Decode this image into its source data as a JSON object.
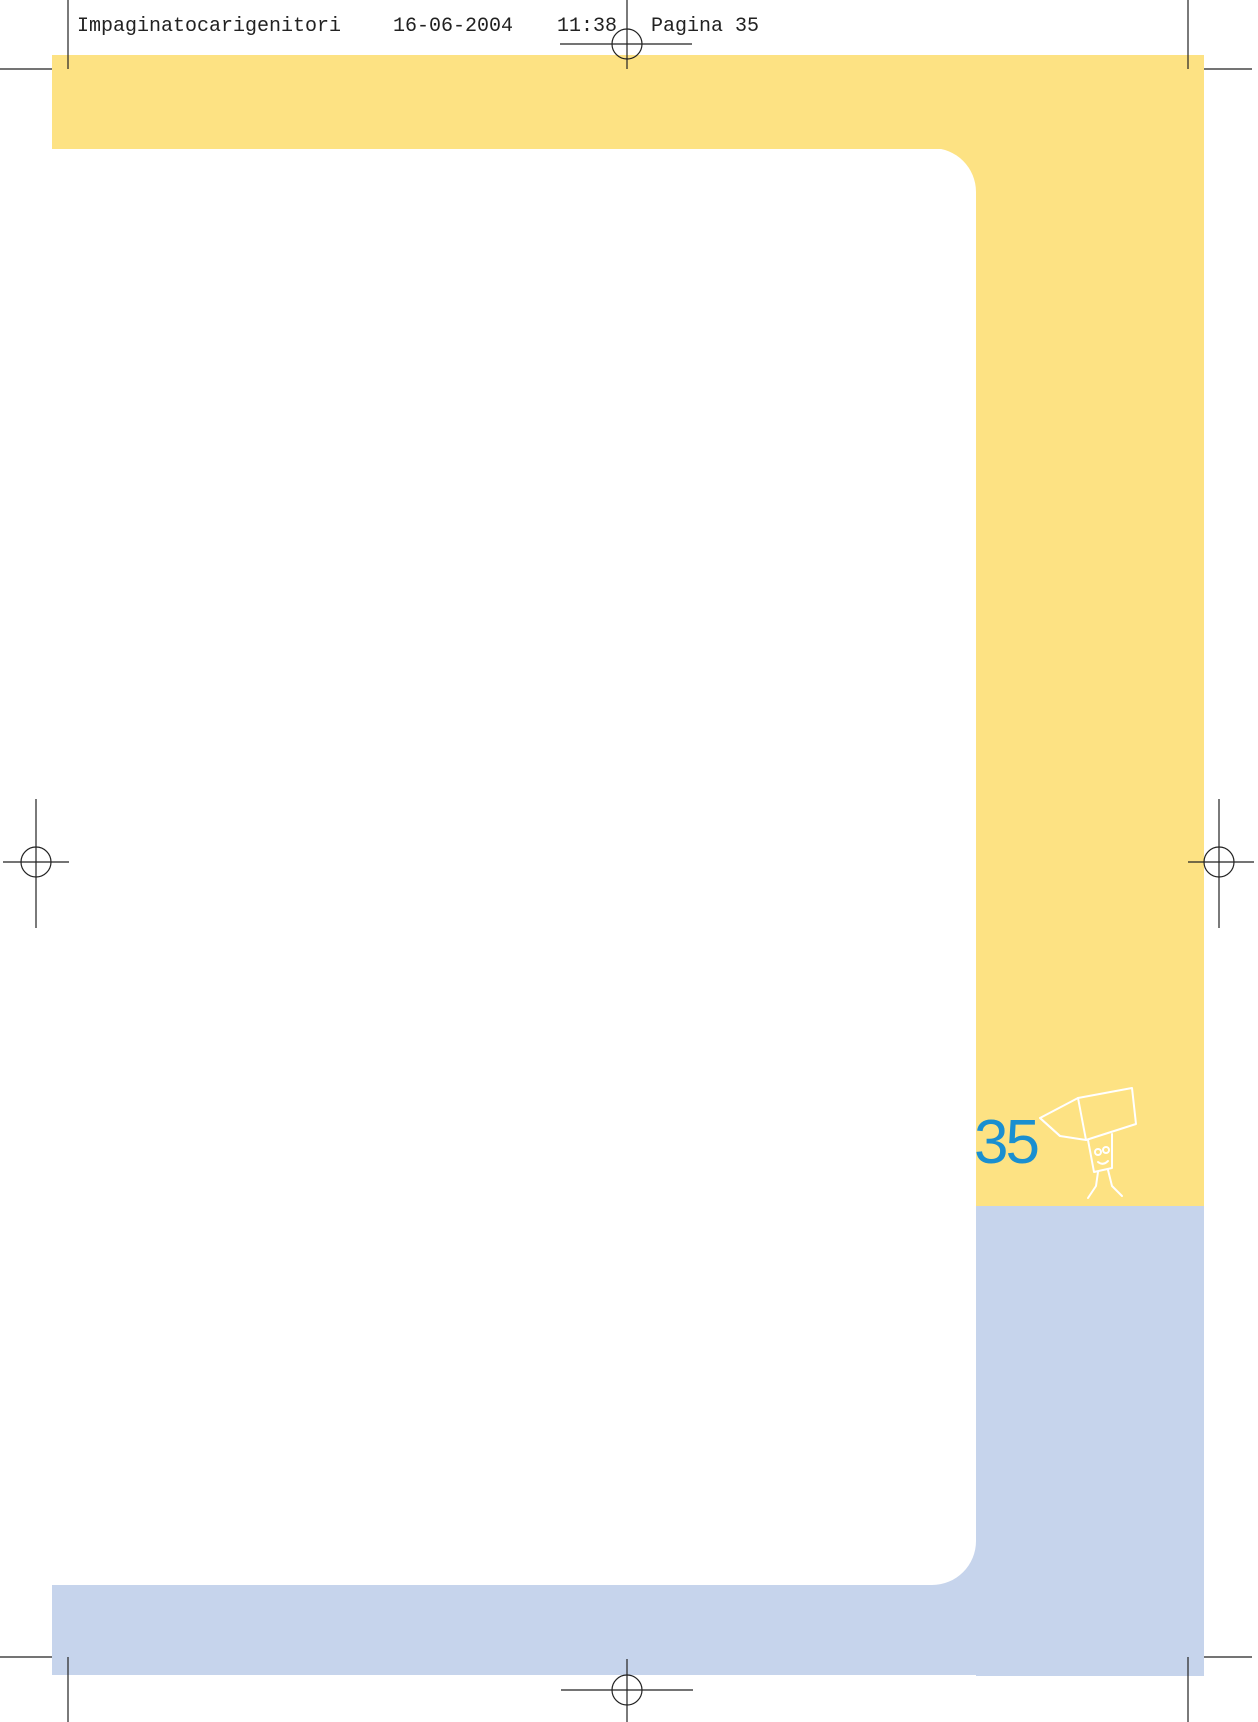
{
  "header": {
    "file": "Impaginatocarigenitori",
    "date": "16-06-2004",
    "time": "11:38",
    "page": "Pagina 35"
  },
  "page_number": "35"
}
